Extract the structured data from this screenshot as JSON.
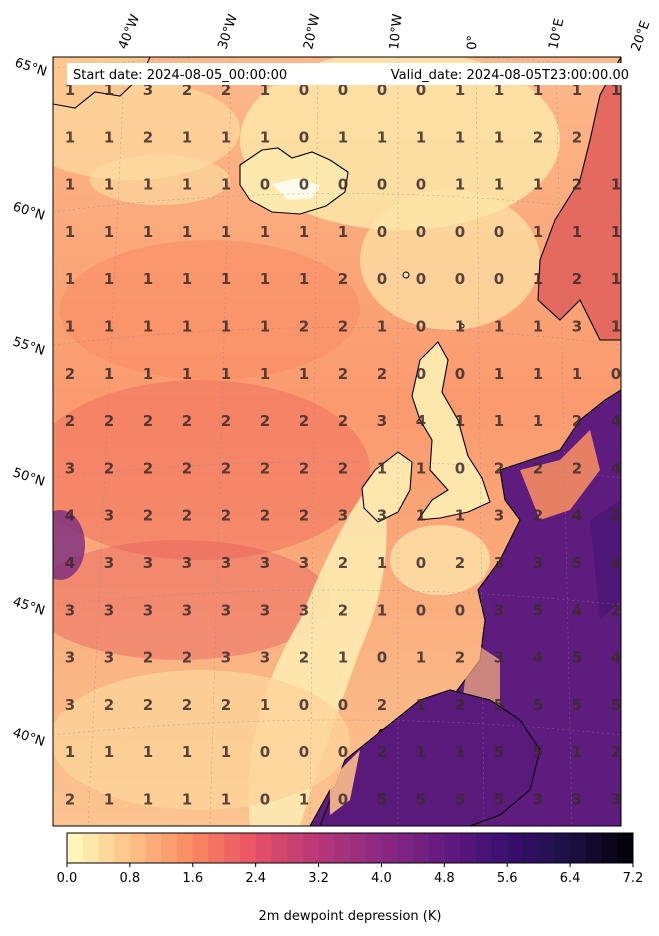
{
  "header": {
    "start_date": "Start date: 2024-08-05_00:00:00",
    "valid_date": "Valid_date: 2024-08-05T23:00:00.00"
  },
  "axes": {
    "lon_labels": [
      "40°W",
      "30°W",
      "20°W",
      "10°W",
      "0°",
      "10°E",
      "20°E"
    ],
    "lat_labels": [
      "65°N",
      "60°N",
      "55°N",
      "50°N",
      "45°N",
      "40°N"
    ]
  },
  "colorbar": {
    "label": "2m dewpoint depression (K)",
    "min": 0.0,
    "max": 7.2,
    "tick_labels": [
      "0.0",
      "0.8",
      "1.6",
      "2.4",
      "3.2",
      "4.0",
      "4.8",
      "5.6",
      "6.4",
      "7.2"
    ],
    "colormap": "magma_r",
    "stops": [
      "#fcfdbf",
      "#fec287",
      "#fb8861",
      "#e65164",
      "#b73779",
      "#8c2981",
      "#641a80",
      "#3b0f70",
      "#1c1044",
      "#000004"
    ],
    "levels": 36
  },
  "grid_values": [
    [
      "1",
      "1",
      "3",
      "2",
      "2",
      "1",
      "0",
      "0",
      "0",
      "0",
      "1",
      "1",
      "1",
      "1",
      "1"
    ],
    [
      "1",
      "1",
      "2",
      "1",
      "1",
      "1",
      "0",
      "1",
      "1",
      "1",
      "1",
      "1",
      "2",
      "2",
      ""
    ],
    [
      "1",
      "1",
      "1",
      "1",
      "1",
      "0",
      "0",
      "0",
      "0",
      "0",
      "1",
      "1",
      "1",
      "2",
      "1"
    ],
    [
      "1",
      "1",
      "1",
      "1",
      "1",
      "1",
      "1",
      "1",
      "0",
      "0",
      "0",
      "0",
      "1",
      "1",
      "1"
    ],
    [
      "1",
      "1",
      "1",
      "1",
      "1",
      "1",
      "1",
      "2",
      "0",
      "0",
      "0",
      "0",
      "1",
      "2",
      "1"
    ],
    [
      "1",
      "1",
      "1",
      "1",
      "1",
      "1",
      "2",
      "2",
      "1",
      "0",
      "1",
      "1",
      "1",
      "3",
      "1"
    ],
    [
      "2",
      "1",
      "1",
      "1",
      "1",
      "1",
      "1",
      "2",
      "2",
      "0",
      "0",
      "1",
      "1",
      "1",
      "0"
    ],
    [
      "2",
      "2",
      "2",
      "2",
      "2",
      "2",
      "2",
      "2",
      "3",
      "4",
      "1",
      "1",
      "1",
      "2",
      "4"
    ],
    [
      "3",
      "2",
      "2",
      "2",
      "2",
      "2",
      "2",
      "2",
      "1",
      "1",
      "0",
      "2",
      "2",
      "2",
      "4"
    ],
    [
      "4",
      "3",
      "2",
      "2",
      "2",
      "2",
      "2",
      "3",
      "3",
      "1",
      "1",
      "3",
      "2",
      "4",
      "2"
    ],
    [
      "4",
      "3",
      "3",
      "3",
      "3",
      "3",
      "3",
      "2",
      "1",
      "0",
      "2",
      "3",
      "3",
      "5",
      "4"
    ],
    [
      "3",
      "3",
      "3",
      "3",
      "3",
      "3",
      "3",
      "2",
      "1",
      "0",
      "0",
      "3",
      "5",
      "4",
      "2"
    ],
    [
      "3",
      "3",
      "2",
      "2",
      "3",
      "3",
      "2",
      "1",
      "0",
      "1",
      "2",
      "3",
      "4",
      "5",
      "4"
    ],
    [
      "3",
      "2",
      "2",
      "2",
      "2",
      "1",
      "0",
      "0",
      "2",
      "1",
      "2",
      "5",
      "5",
      "5",
      "5"
    ],
    [
      "1",
      "1",
      "1",
      "1",
      "1",
      "0",
      "0",
      "0",
      "2",
      "1",
      "1",
      "5",
      "5",
      "1",
      "2"
    ],
    [
      "2",
      "1",
      "1",
      "1",
      "1",
      "0",
      "1",
      "0",
      "5",
      "5",
      "5",
      "5",
      "3",
      "3",
      "3"
    ]
  ]
}
